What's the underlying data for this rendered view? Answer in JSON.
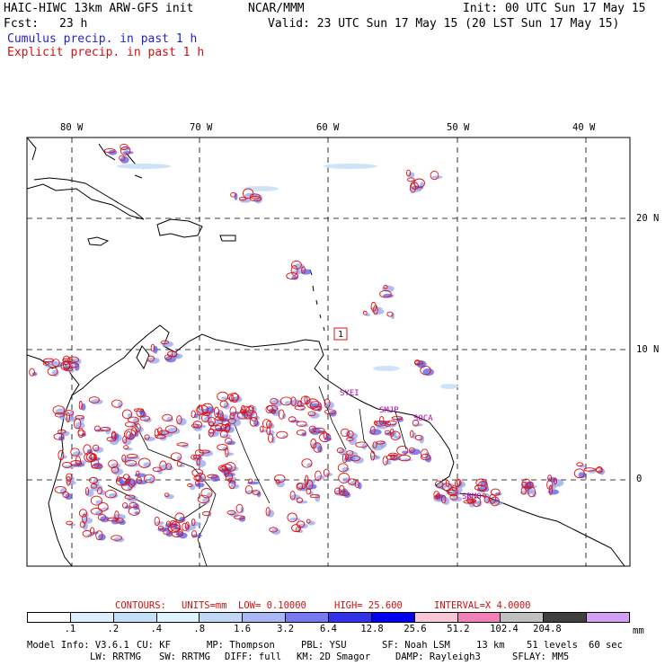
{
  "header": {
    "model": "HAIC-HIWC 13km ARW-GFS init",
    "center": "NCAR/MMM",
    "init": "Init: 00 UTC Sun 17 May 15",
    "fcst_label": "Fcst:",
    "fcst_value": "23 h",
    "valid": "Valid: 23 UTC Sun 17 May 15 (20 LST Sun 17 May 15)",
    "cumulus_label": "Cumulus precip. in past 1 h",
    "explicit_label": "Explicit precip. in past 1 h"
  },
  "map": {
    "lon_labels": [
      "80 W",
      "70 W",
      "60 W",
      "50 W",
      "40 W"
    ],
    "lat_labels": [
      "20 N",
      "10 N",
      "0"
    ],
    "stations": [
      "SYEI",
      "SMJP",
      "SOCA",
      "SBMQ"
    ],
    "box_label": "1",
    "colors": {
      "explicit": "#e01010",
      "cumulus": "#8aa0f0",
      "coast": "#000000",
      "grid": "#000000"
    }
  },
  "contours": {
    "label": "CONTOURS:",
    "units": "UNITS=mm",
    "low": "LOW= 0.10000",
    "high": "HIGH= 25.600",
    "interval": "INTERVAL=X 4.0000"
  },
  "legend": {
    "unit": "mm",
    "ticks": [
      ".1",
      ".2",
      ".4",
      ".8",
      "1.6",
      "3.2",
      "6.4",
      "12.8",
      "25.6",
      "51.2",
      "102.4",
      "204.8"
    ],
    "colors": [
      "#ffffff",
      "#ddeefe",
      "#c4e0f8",
      "#ddf5ff",
      "#c0d8f5",
      "#a8b8f4",
      "#7878f0",
      "#3232e8",
      "#0000f0",
      "#f8c8d8",
      "#f080b8",
      "#c0c0c0",
      "#404040",
      "#d4a0f4"
    ]
  },
  "footer": {
    "line1": [
      "Model Info: V3.6.1",
      "CU: KF",
      "MP: Thompson",
      "PBL: YSU",
      "SF: Noah LSM",
      "13 km",
      "51 levels",
      "60 sec"
    ],
    "line2": [
      "LW: RRTMG",
      "SW: RRTMG",
      "DIFF: full",
      "KM: 2D Smagor",
      "DAMP: Rayleigh3",
      "SFLAY: MM5"
    ]
  }
}
